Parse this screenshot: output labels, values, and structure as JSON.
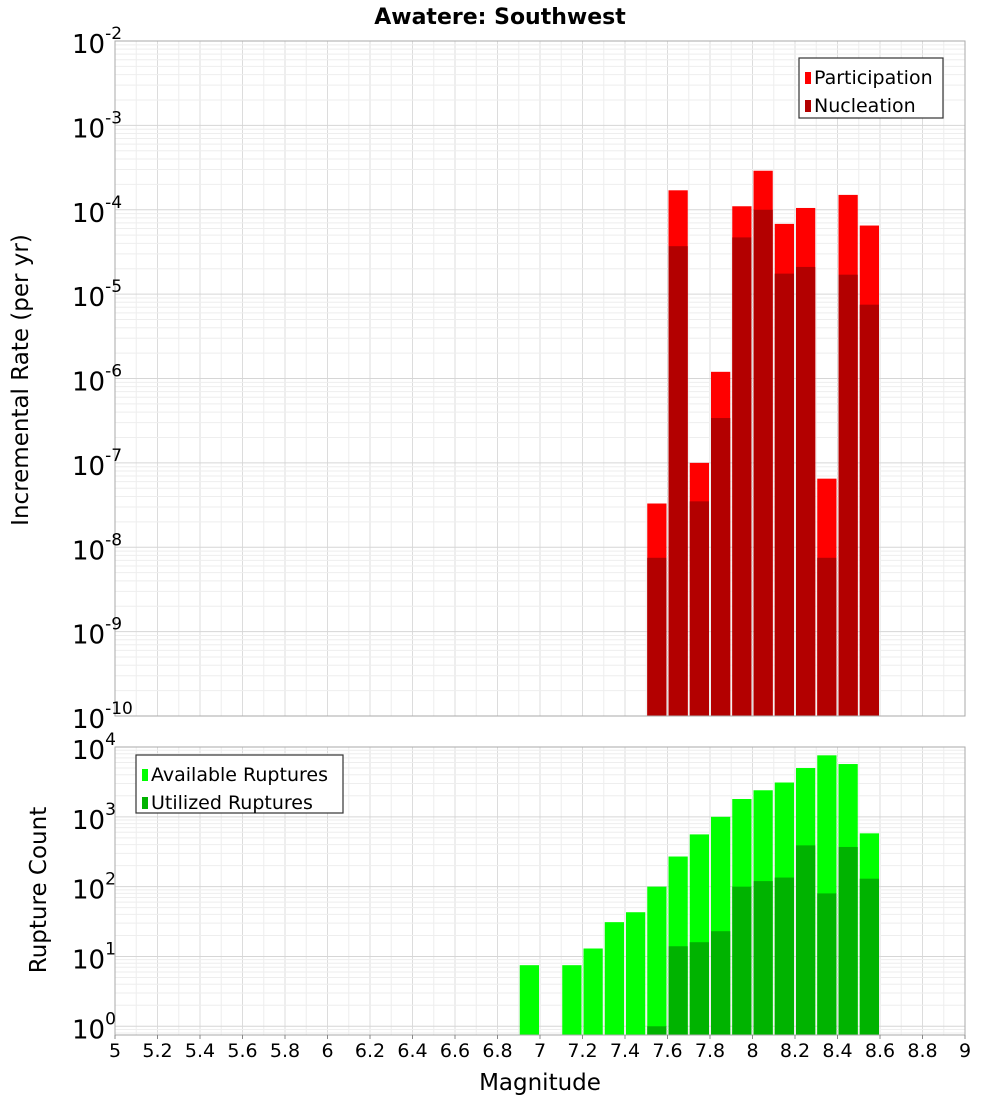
{
  "chart_data": [
    {
      "type": "bar",
      "title": "Awatere: Southwest",
      "ylabel": "Incremental Rate (per yr)",
      "xlabel": "",
      "yscale": "log",
      "ylim": [
        1e-10,
        0.01
      ],
      "xlim": [
        5,
        9
      ],
      "grid": true,
      "legend_position": "top-right",
      "bin_width": 0.1,
      "y_tick_exponents": [
        "-2",
        "-3",
        "-4",
        "-5",
        "-6",
        "-7",
        "-8",
        "-9",
        "-10"
      ],
      "y_tick_base": "10",
      "colors": {
        "Participation": "#ff0000",
        "Nucleation": "#b30000"
      },
      "x": [
        7.55,
        7.65,
        7.75,
        7.85,
        7.95,
        8.05,
        8.15,
        8.25,
        8.35,
        8.45,
        8.55
      ],
      "series": [
        {
          "name": "Participation",
          "values": [
            3.3e-08,
            0.00017,
            1e-07,
            1.2e-06,
            0.00011,
            0.00029,
            6.8e-05,
            0.000105,
            6.5e-08,
            0.00015,
            6.5e-05
          ]
        },
        {
          "name": "Nucleation",
          "values": [
            7.5e-09,
            3.7e-05,
            3.5e-08,
            3.4e-07,
            4.7e-05,
            0.0001,
            1.75e-05,
            2.1e-05,
            7.5e-09,
            1.7e-05,
            7.5e-06
          ]
        }
      ]
    },
    {
      "type": "bar",
      "title": "",
      "ylabel": "Rupture Count",
      "xlabel": "Magnitude",
      "yscale": "log",
      "ylim": [
        0.75,
        10000
      ],
      "xlim": [
        5,
        9
      ],
      "grid": true,
      "legend_position": "top-left",
      "bin_width": 0.1,
      "x_ticks": [
        "5",
        "5.2",
        "5.4",
        "5.6",
        "5.8",
        "6",
        "6.2",
        "6.4",
        "6.6",
        "6.8",
        "7",
        "7.2",
        "7.4",
        "7.6",
        "7.8",
        "8",
        "8.2",
        "8.4",
        "8.6",
        "8.8",
        "9"
      ],
      "y_tick_exponents": [
        "4",
        "3",
        "2",
        "1",
        "0"
      ],
      "y_tick_base": "10",
      "colors": {
        "Available Ruptures": "#00ff00",
        "Utilized Ruptures": "#00b300"
      },
      "x": [
        6.95,
        7.15,
        7.25,
        7.35,
        7.45,
        7.55,
        7.65,
        7.75,
        7.85,
        7.95,
        8.05,
        8.15,
        8.25,
        8.35,
        8.45,
        8.55
      ],
      "series": [
        {
          "name": "Available Ruptures",
          "values": [
            7.5,
            7.5,
            13,
            31,
            43,
            100,
            270,
            560,
            1000,
            1800,
            2400,
            3100,
            5000,
            7600,
            5700,
            580
          ]
        },
        {
          "name": "Utilized Ruptures",
          "values": [
            0,
            0,
            0,
            0,
            0,
            1,
            14,
            16,
            23,
            100,
            120,
            135,
            390,
            80,
            370,
            130
          ]
        }
      ]
    }
  ]
}
